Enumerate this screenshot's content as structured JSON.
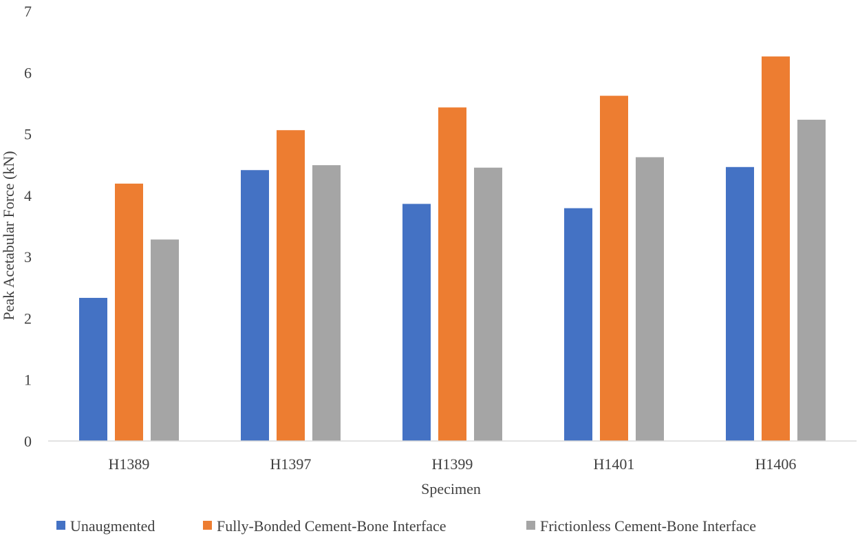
{
  "chart_data": {
    "type": "bar",
    "title": "",
    "xlabel": "Specimen",
    "ylabel": "Peak Acetabular Force (kN)",
    "ylim": [
      0,
      7
    ],
    "yticks": [
      "0",
      "1",
      "2",
      "3",
      "4",
      "5",
      "6",
      "7"
    ],
    "grid": false,
    "legend_position": "bottom",
    "categories": [
      "H1389",
      "H1397",
      "H1399",
      "H1401",
      "H1406"
    ],
    "series": [
      {
        "name": "Unaugmented",
        "color": "#4472c4",
        "values": [
          2.33,
          4.41,
          3.86,
          3.79,
          4.46
        ]
      },
      {
        "name": "Fully-Bonded Cement-Bone Interface",
        "color": "#ed7d31",
        "values": [
          4.19,
          5.06,
          5.43,
          5.62,
          6.26
        ]
      },
      {
        "name": "Frictionless Cement-Bone Interface",
        "color": "#a5a5a5",
        "values": [
          3.28,
          4.49,
          4.45,
          4.62,
          5.23
        ]
      }
    ]
  }
}
